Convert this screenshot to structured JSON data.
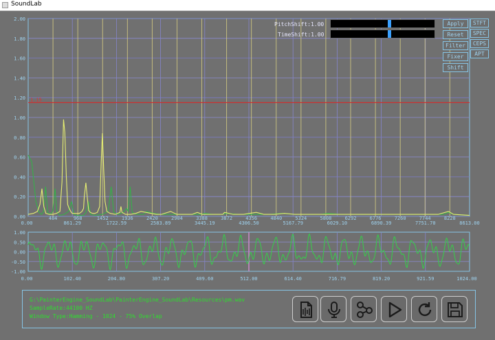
{
  "window": {
    "title": "SoundLab"
  },
  "controls": {
    "pitch_label": "PitchShift:1.00",
    "time_label": "TimeShift:1.00",
    "pitch_value": 0.56,
    "time_value": 0.56,
    "buttons": [
      "Apply",
      "Reset",
      "Filter",
      "Fixer",
      "Shift"
    ],
    "mode_buttons": [
      "STFT",
      "SPEC",
      "CEPS",
      "APT"
    ]
  },
  "threshold_label": "1.15",
  "spectrum": {
    "y_ticks": [
      "2.00",
      "1.80",
      "1.60",
      "1.40",
      "1.20",
      "1.00",
      "0.80",
      "0.60",
      "0.40",
      "0.20",
      "0.00"
    ],
    "x_ticks_lower": [
      "0.00",
      "861.29",
      "1722.59",
      "2583.89",
      "3445.19",
      "4306.50",
      "5167.79",
      "6029.10",
      "6890.39",
      "7751.70",
      "8613.00"
    ],
    "x_ticks_upper": [
      "484",
      "968",
      "1452",
      "1936",
      "2420",
      "2904",
      "3388",
      "3872",
      "4356",
      "4840",
      "5324",
      "5808",
      "6292",
      "6776",
      "7260",
      "7744",
      "8228"
    ]
  },
  "chart_data": [
    {
      "type": "line",
      "x_range": [
        0,
        8613
      ],
      "ylim": [
        0,
        2
      ],
      "threshold": 1.15,
      "series": [
        {
          "values": [
            [
              0,
              0.62
            ],
            [
              70,
              0.55
            ],
            [
              150,
              0.15
            ],
            [
              210,
              0.04
            ],
            [
              260,
              0.02
            ],
            [
              300,
              0.05
            ],
            [
              340,
              0.3
            ],
            [
              380,
              0.04
            ],
            [
              430,
              0.02
            ],
            [
              480,
              0.05
            ],
            [
              525,
              0.28
            ],
            [
              560,
              0.05
            ],
            [
              610,
              0.01
            ],
            [
              700,
              0.02
            ],
            [
              790,
              0.05
            ],
            [
              845,
              0.15
            ],
            [
              890,
              0.02
            ],
            [
              960,
              0.01
            ],
            [
              1080,
              0.01
            ],
            [
              1130,
              0.04
            ],
            [
              1180,
              0.15
            ],
            [
              1215,
              0.02
            ],
            [
              1300,
              0.01
            ],
            [
              1450,
              0.02
            ],
            [
              1560,
              0.05
            ],
            [
              1620,
              0.3
            ],
            [
              1670,
              0.04
            ],
            [
              1760,
              0.02
            ],
            [
              1850,
              0.04
            ],
            [
              1920,
              0.08
            ],
            [
              1950,
              0.05
            ],
            [
              1990,
              0.3
            ],
            [
              2030,
              0.04
            ],
            [
              2120,
              0.02
            ],
            [
              2250,
              0.02
            ],
            [
              2310,
              0.05
            ],
            [
              2440,
              0.03
            ],
            [
              2580,
              0.02
            ],
            [
              2700,
              0.02
            ],
            [
              2760,
              0.02
            ],
            [
              2900,
              0.02
            ],
            [
              3100,
              0.02
            ],
            [
              3360,
              0.02
            ],
            [
              3450,
              0.03
            ],
            [
              3600,
              0.02
            ],
            [
              3800,
              0.02
            ],
            [
              3850,
              0.03
            ],
            [
              4100,
              0.02
            ],
            [
              4300,
              0.02
            ],
            [
              4500,
              0.02
            ],
            [
              4700,
              0.02
            ],
            [
              4950,
              0.03
            ],
            [
              5200,
              0.02
            ],
            [
              5500,
              0.02
            ],
            [
              5700,
              0.02
            ],
            [
              5850,
              0.03
            ],
            [
              6100,
              0.02
            ],
            [
              6400,
              0.02
            ],
            [
              6800,
              0.02
            ],
            [
              7200,
              0.02
            ],
            [
              7500,
              0.02
            ],
            [
              7800,
              0.02
            ],
            [
              8100,
              0.02
            ],
            [
              8200,
              0.04
            ],
            [
              8300,
              0.02
            ],
            [
              8613,
              0.01
            ]
          ]
        },
        {
          "values": [
            [
              0,
              0.02
            ],
            [
              100,
              0.03
            ],
            [
              180,
              0.05
            ],
            [
              230,
              0.12
            ],
            [
              268,
              0.28
            ],
            [
              305,
              0.1
            ],
            [
              345,
              0.03
            ],
            [
              410,
              0.02
            ],
            [
              480,
              0.02
            ],
            [
              550,
              0.03
            ],
            [
              620,
              0.05
            ],
            [
              660,
              0.35
            ],
            [
              690,
              0.98
            ],
            [
              715,
              0.85
            ],
            [
              745,
              0.4
            ],
            [
              770,
              0.12
            ],
            [
              800,
              0.08
            ],
            [
              830,
              0.05
            ],
            [
              860,
              0.03
            ],
            [
              900,
              0.03
            ],
            [
              960,
              0.03
            ],
            [
              1000,
              0.03
            ],
            [
              1050,
              0.05
            ],
            [
              1080,
              0.08
            ],
            [
              1095,
              0.2
            ],
            [
              1125,
              0.34
            ],
            [
              1155,
              0.18
            ],
            [
              1180,
              0.06
            ],
            [
              1210,
              0.04
            ],
            [
              1260,
              0.03
            ],
            [
              1300,
              0.03
            ],
            [
              1350,
              0.04
            ],
            [
              1395,
              0.1
            ],
            [
              1425,
              0.55
            ],
            [
              1448,
              0.84
            ],
            [
              1475,
              0.46
            ],
            [
              1500,
              0.15
            ],
            [
              1535,
              0.05
            ],
            [
              1600,
              0.03
            ],
            [
              1700,
              0.02
            ],
            [
              1790,
              0.04
            ],
            [
              1810,
              0.1
            ],
            [
              1830,
              0.04
            ],
            [
              1900,
              0.02
            ],
            [
              2000,
              0.02
            ],
            [
              2100,
              0.03
            ],
            [
              2200,
              0.05
            ],
            [
              2400,
              0.03
            ],
            [
              2500,
              0.02
            ],
            [
              2600,
              0.02
            ],
            [
              2780,
              0.05
            ],
            [
              2900,
              0.02
            ],
            [
              3000,
              0.02
            ],
            [
              3200,
              0.02
            ],
            [
              3300,
              0.04
            ],
            [
              3400,
              0.02
            ],
            [
              3600,
              0.02
            ],
            [
              3800,
              0.02
            ],
            [
              3830,
              0.04
            ],
            [
              4000,
              0.02
            ],
            [
              4200,
              0.02
            ],
            [
              4450,
              0.04
            ],
            [
              4600,
              0.02
            ],
            [
              4800,
              0.02
            ],
            [
              5000,
              0.03
            ],
            [
              5200,
              0.02
            ],
            [
              5600,
              0.02
            ],
            [
              6000,
              0.02
            ],
            [
              6400,
              0.02
            ],
            [
              6800,
              0.02
            ],
            [
              7100,
              0.02
            ],
            [
              7400,
              0.02
            ],
            [
              7700,
              0.02
            ],
            [
              8000,
              0.02
            ],
            [
              8200,
              0.05
            ],
            [
              8300,
              0.02
            ],
            [
              8613,
              0.01
            ]
          ]
        }
      ]
    },
    {
      "type": "line",
      "x_range": [
        0,
        1024
      ],
      "ylim": [
        -1,
        1
      ],
      "y_ticks": [
        "1.00",
        "0.50",
        "0.00",
        "-0.50",
        "-1.00"
      ],
      "x_ticks": [
        "0.00",
        "102.40",
        "204.80",
        "307.20",
        "409.60",
        "512.00",
        "614.40",
        "716.79",
        "819.20",
        "921.59",
        "1024.00"
      ],
      "series": [
        {
          "function": "0.50*sin(2*pi*t/40.2) + 0.28*sin(2*pi*t/19.7 + 0.8) + 0.15*sin(2*pi*t/12.3 + 1.7)",
          "t_range": [
            0,
            1024
          ]
        }
      ]
    }
  ],
  "info": {
    "path": "G:\\PainterEngine_SoundLab\\PainterEngine_SoundLab\\Resources\\pm.wav",
    "sample_rate": "SampleRate:44100 HZ",
    "window_type": "Window Type:Hamming - 1024 - 75% Overlap"
  },
  "toolbar": {
    "icons": [
      "waveform-file-icon",
      "microphone-icon",
      "nodes-icon",
      "play-icon",
      "refresh-icon",
      "save-icon"
    ]
  }
}
